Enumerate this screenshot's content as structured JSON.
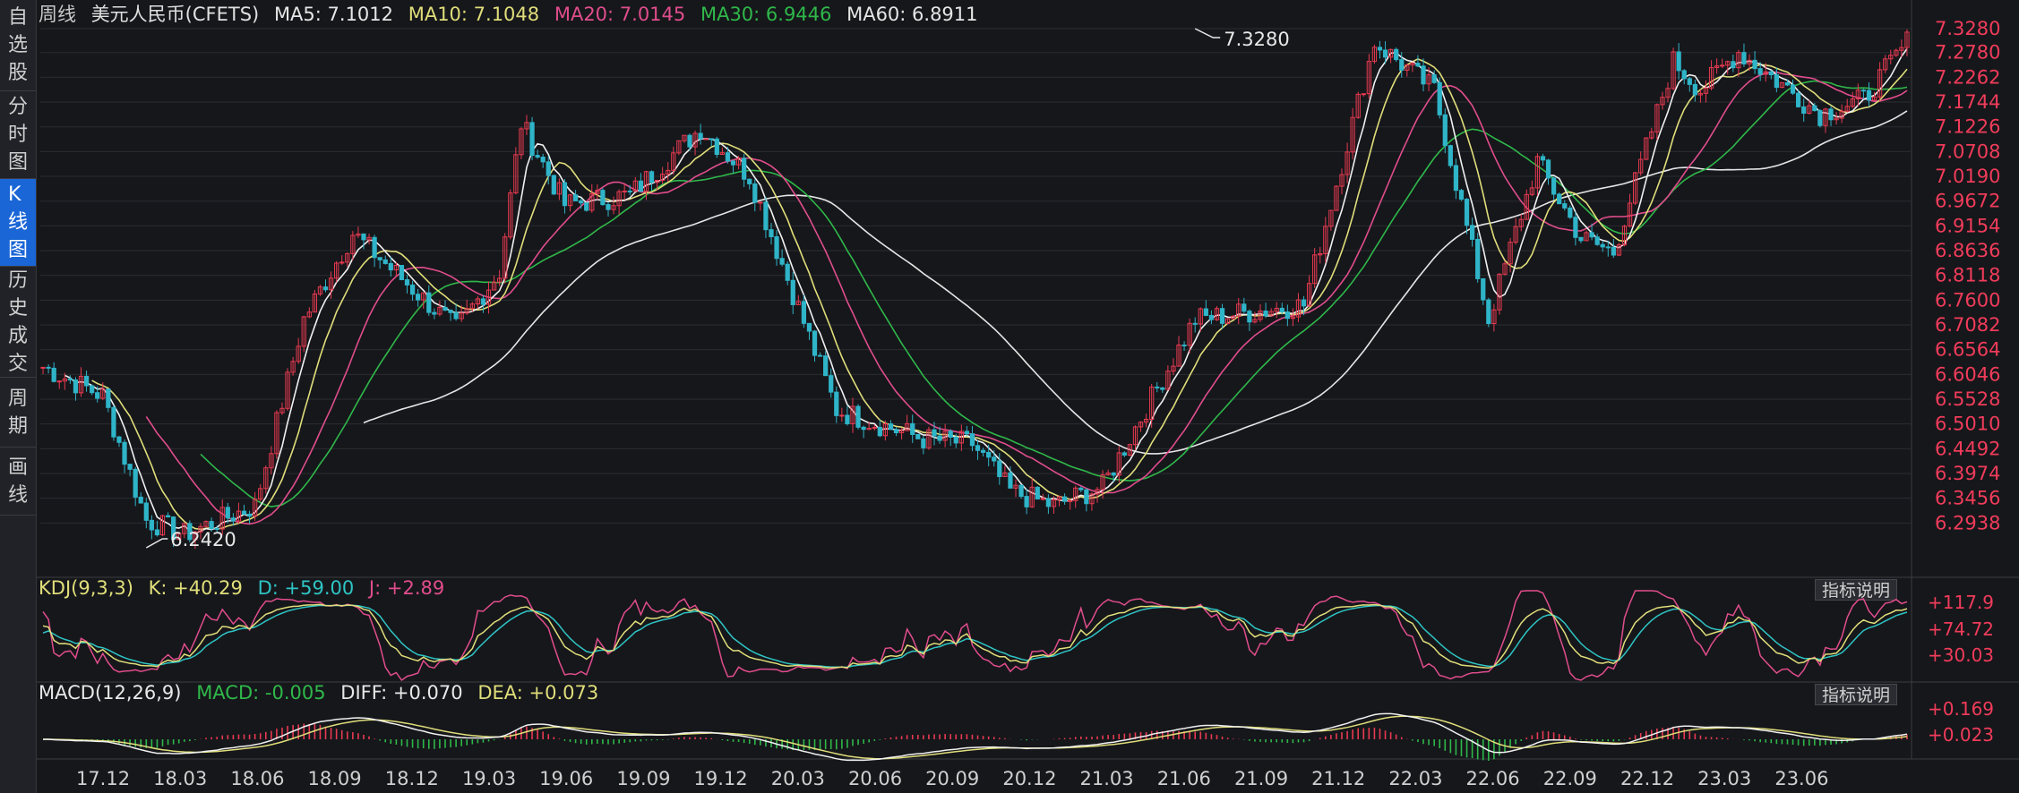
{
  "sidebar": {
    "tabs": [
      {
        "label": "自选股",
        "active": false
      },
      {
        "label": "分时图",
        "active": false
      },
      {
        "label": "K线图",
        "active": true
      },
      {
        "label": "历史成交",
        "active": false
      },
      {
        "label": "周期",
        "active": false
      },
      {
        "label": "画线",
        "active": false
      }
    ]
  },
  "main": {
    "period": "周线",
    "symbol": "美元人民币(CFETS)",
    "ma": [
      {
        "label": "MA5: 7.1012",
        "color": "#e6e6e6"
      },
      {
        "label": "MA10: 7.1048",
        "color": "#e0de7a"
      },
      {
        "label": "MA20: 7.0145",
        "color": "#e04d8c"
      },
      {
        "label": "MA30: 6.9446",
        "color": "#2fb84a"
      },
      {
        "label": "MA60: 6.8911",
        "color": "#e6e6e6"
      }
    ],
    "price_axis": [
      "7.3280",
      "7.2780",
      "7.2262",
      "7.1744",
      "7.1226",
      "7.0708",
      "7.0190",
      "6.9672",
      "6.9154",
      "6.8636",
      "6.8118",
      "6.7600",
      "6.7082",
      "6.6564",
      "6.6046",
      "6.5528",
      "6.5010",
      "6.4492",
      "6.3974",
      "6.3456",
      "6.2938"
    ],
    "high_label": "7.3280",
    "low_label": "6.2420"
  },
  "kdj": {
    "title": "KDJ(9,3,3)",
    "k": "K: +40.29",
    "d": "D: +59.00",
    "j": "J: +2.89",
    "axis": [
      "+117.9",
      "+74.72",
      "+30.03"
    ],
    "help": "指标说明"
  },
  "macd": {
    "title": "MACD(12,26,9)",
    "macd": "MACD: -0.005",
    "diff": "DIFF: +0.070",
    "dea": "DEA: +0.073",
    "axis": [
      "+0.169",
      "+0.023"
    ],
    "help": "指标说明"
  },
  "time_axis": [
    "17.12",
    "18.03",
    "18.06",
    "18.09",
    "18.12",
    "19.03",
    "19.06",
    "19.09",
    "19.12",
    "20.03",
    "20.06",
    "20.09",
    "20.12",
    "21.03",
    "21.06",
    "21.09",
    "21.12",
    "22.03",
    "22.06",
    "22.09",
    "22.12",
    "23.03",
    "23.06"
  ],
  "colors": {
    "up": "#e83a50",
    "down": "#2fb4c8",
    "axis_text": "#f03c5a",
    "grid": "#2a2c31",
    "white": "#e8e8e8"
  },
  "chart_data": {
    "type": "candlestick",
    "x_key_weeks": [
      0,
      11,
      19,
      26,
      39,
      48,
      57,
      76,
      84,
      88,
      96,
      108,
      121,
      130,
      146,
      162,
      171,
      178,
      186,
      195,
      212,
      232,
      245,
      256,
      266,
      275,
      283,
      289,
      300,
      305,
      312,
      327,
      335,
      343
    ],
    "close_key": [
      6.62,
      6.56,
      6.3,
      6.27,
      6.33,
      6.72,
      6.9,
      6.7,
      6.82,
      7.13,
      6.96,
      6.98,
      7.12,
      7.02,
      6.53,
      6.47,
      6.46,
      6.36,
      6.33,
      6.37,
      6.72,
      6.75,
      7.3,
      7.2,
      6.72,
      7.05,
      6.89,
      6.86,
      7.26,
      7.2,
      7.28,
      7.15,
      7.18,
      7.3
    ]
  }
}
